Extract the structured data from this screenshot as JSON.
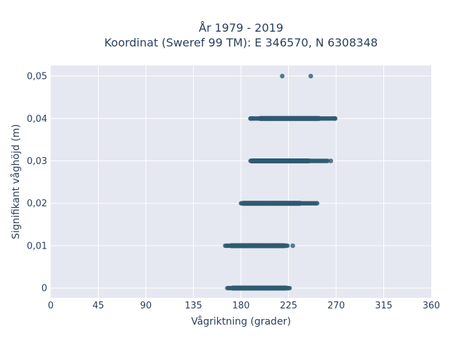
{
  "chart_data": {
    "type": "scatter",
    "title_line1": "År 1979 - 2019",
    "title_line2": "Koordinat (Sweref 99 TM): E 346570, N 6308348",
    "xlabel": "Vågriktning (grader)",
    "ylabel": "Signifikant våghöjd (m)",
    "xlim": [
      0,
      360
    ],
    "ylim": [
      -0.0023,
      0.0525
    ],
    "grid": true,
    "x_ticks": [
      0,
      45,
      90,
      135,
      180,
      225,
      270,
      315,
      360
    ],
    "x_tick_labels": [
      "0",
      "45",
      "90",
      "135",
      "180",
      "225",
      "270",
      "315",
      "360"
    ],
    "y_ticks": [
      0,
      0.01,
      0.02,
      0.03,
      0.04,
      0.05
    ],
    "y_tick_labels": [
      "0",
      "0,01",
      "0,02",
      "0,03",
      "0,04",
      "0,05"
    ],
    "colors": {
      "marker": "#2f5a72",
      "plot_bg": "#e5e8f1",
      "grid": "#ffffff"
    },
    "series": [
      {
        "bands": [
          {
            "y": 0.0,
            "dense": [
              172,
              223
            ],
            "sparse": [
              167,
              172,
              223,
              226
            ]
          },
          {
            "y": 0.01,
            "dense": [
              171,
              221
            ],
            "sparse": [
              165,
              171,
              221,
              224
            ]
          },
          {
            "y": 0.02,
            "dense": [
              182,
              236
            ],
            "sparse": [
              180,
              182,
              236,
              251
            ]
          },
          {
            "y": 0.03,
            "dense": [
              190,
              244
            ],
            "sparse": [
              189,
              190,
              244,
              262
            ]
          },
          {
            "y": 0.04,
            "dense": [
              198,
              254
            ],
            "sparse": [
              189,
              198,
              254,
              269
            ]
          }
        ],
        "points": [
          [
            189,
            0.04
          ],
          [
            191,
            0.04
          ],
          [
            269,
            0.04
          ],
          [
            265,
            0.03
          ],
          [
            252,
            0.02
          ],
          [
            229,
            0.01
          ],
          [
            219,
            0.05
          ],
          [
            246,
            0.05
          ]
        ]
      }
    ]
  }
}
